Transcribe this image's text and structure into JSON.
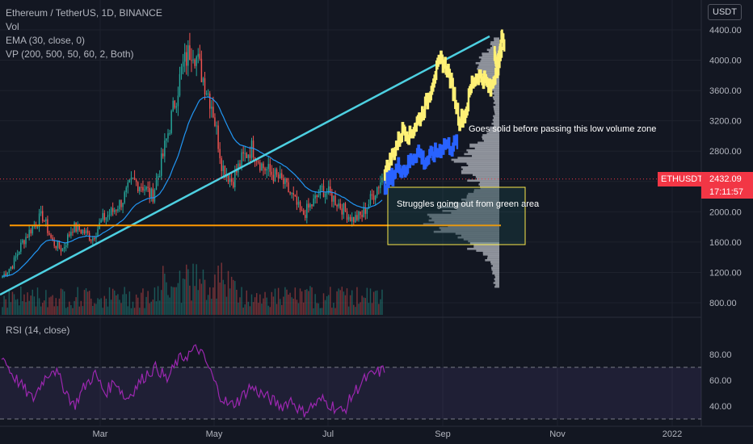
{
  "header": {
    "symbol_line": "Ethereum / TetherUS, 1D, BINANCE",
    "indicators": [
      "Vol",
      "EMA (30, close, 0)",
      "VP (200, 500, 50, 60, 2, Both)"
    ],
    "rsi_label": "RSI (14, close)",
    "currency": "USDT"
  },
  "price_tag": {
    "ticker": "ETHUSDT",
    "price": "2432.09",
    "countdown": "17:11:57"
  },
  "annotations": {
    "low_volume": "Goes solid before passing this low volume zone",
    "green_area": "Struggles going out from green area"
  },
  "colors": {
    "background": "#131722",
    "up": "#26a69a",
    "down": "#ef5350",
    "trendline": "#4dd0e1",
    "support": "#ff9800",
    "projection_yellow": "#fff176",
    "projection_blue": "#2962ff",
    "rsi": "#9c27b0",
    "box": "#fbe94b"
  },
  "chart_data": {
    "type": "candlestick",
    "price_axis": {
      "min": 800,
      "max": 4400,
      "ticks": [
        "800.00",
        "1200.00",
        "1600.00",
        "2000.00",
        "2400.00",
        "2800.00",
        "3200.00",
        "3600.00",
        "4000.00",
        "4400.00"
      ]
    },
    "rsi_axis": {
      "ticks": [
        "40.00",
        "60.00",
        "80.00"
      ],
      "overbought": 70,
      "oversold": 30
    },
    "x_ticks": [
      "Mar",
      "May",
      "Jul",
      "Sep",
      "Nov",
      "2022"
    ],
    "current_price": 2432.09,
    "support_level": 1820,
    "price_path": [
      {
        "d": "Jan",
        "p": 1150
      },
      {
        "d": "Jan",
        "p": 1300
      },
      {
        "d": "Feb",
        "p": 1600
      },
      {
        "d": "Feb",
        "p": 1800
      },
      {
        "d": "Feb",
        "p": 1950
      },
      {
        "d": "Feb",
        "p": 1600
      },
      {
        "d": "Mar",
        "p": 1500
      },
      {
        "d": "Mar",
        "p": 1800
      },
      {
        "d": "Mar",
        "p": 1750
      },
      {
        "d": "Mar",
        "p": 1650
      },
      {
        "d": "Mar",
        "p": 1900
      },
      {
        "d": "Apr",
        "p": 2000
      },
      {
        "d": "Apr",
        "p": 2150
      },
      {
        "d": "Apr",
        "p": 2400
      },
      {
        "d": "Apr",
        "p": 2350
      },
      {
        "d": "Apr",
        "p": 2200
      },
      {
        "d": "May",
        "p": 2700
      },
      {
        "d": "May",
        "p": 3300
      },
      {
        "d": "May",
        "p": 3900
      },
      {
        "d": "May",
        "p": 4200
      },
      {
        "d": "May",
        "p": 3800
      },
      {
        "d": "May",
        "p": 3400
      },
      {
        "d": "May",
        "p": 2600
      },
      {
        "d": "May",
        "p": 2400
      },
      {
        "d": "Jun",
        "p": 2700
      },
      {
        "d": "Jun",
        "p": 2850
      },
      {
        "d": "Jun",
        "p": 2600
      },
      {
        "d": "Jun",
        "p": 2500
      },
      {
        "d": "Jun",
        "p": 2400
      },
      {
        "d": "Jun",
        "p": 2200
      },
      {
        "d": "Jun",
        "p": 1950
      },
      {
        "d": "Jul",
        "p": 2100
      },
      {
        "d": "Jul",
        "p": 2300
      },
      {
        "d": "Jul",
        "p": 2200
      },
      {
        "d": "Jul",
        "p": 2050
      },
      {
        "d": "Jul",
        "p": 1900
      },
      {
        "d": "Jul",
        "p": 1950
      },
      {
        "d": "Jul",
        "p": 2200
      },
      {
        "d": "Jul",
        "p": 2450
      }
    ],
    "yellow_projection": [
      2500,
      2700,
      2900,
      3100,
      3000,
      3150,
      3300,
      3500,
      3800,
      4000,
      3900,
      3600,
      3200,
      3300,
      3700,
      3800,
      3750,
      3600,
      3900,
      4100
    ],
    "blue_projection": [
      2350,
      2450,
      2600,
      2550,
      2700,
      2800,
      2650,
      2750,
      2800,
      2900,
      2850,
      2950
    ],
    "rsi_values": [
      80,
      65,
      55,
      45,
      60,
      70,
      55,
      40,
      55,
      65,
      50,
      60,
      45,
      55,
      65,
      70,
      60,
      75,
      80,
      85,
      70,
      50,
      40,
      45,
      55,
      50,
      45,
      40,
      45,
      35,
      40,
      45,
      40,
      35,
      50,
      60,
      65,
      68
    ]
  }
}
